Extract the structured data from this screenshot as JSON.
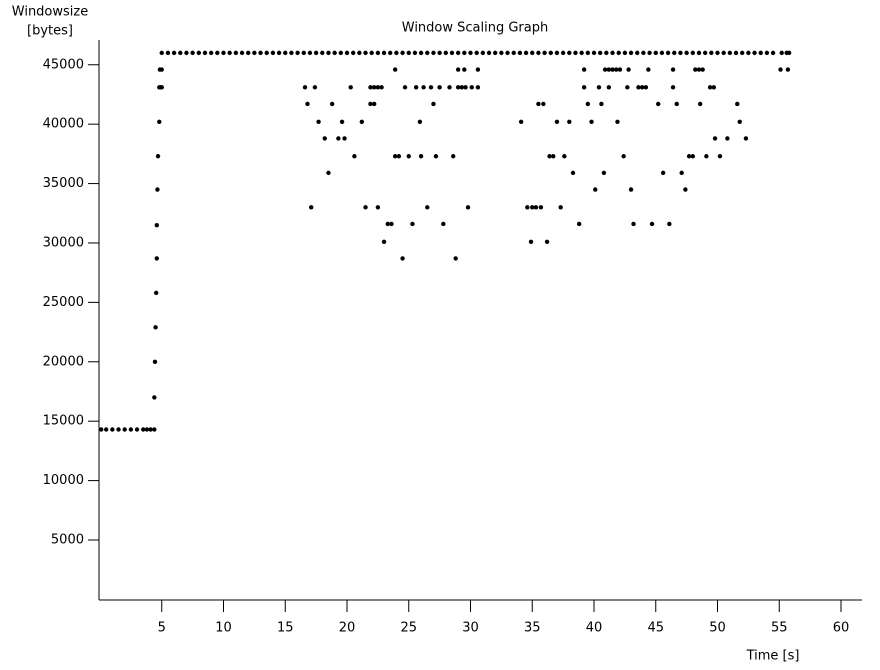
{
  "chart_data": {
    "type": "scatter",
    "title": "Window Scaling Graph",
    "y_label": "Windowsize",
    "y_unit_label": "[bytes]",
    "x_label": "Time [s]",
    "xlim": [
      0,
      61.7
    ],
    "ylim": [
      0,
      47000
    ],
    "xticks": [
      5,
      10,
      15,
      20,
      25,
      30,
      35,
      40,
      45,
      50,
      55,
      60
    ],
    "yticks": [
      5000,
      10000,
      15000,
      20000,
      25000,
      30000,
      35000,
      40000,
      45000
    ],
    "color": "#000000",
    "series": [
      {
        "color": "#000000",
        "x": [
          0.1,
          0.5,
          1,
          1.5,
          2,
          2.5,
          3,
          3.5,
          3.8,
          4.1,
          4.4,
          4.4,
          4.45,
          4.5,
          4.55,
          4.6,
          4.6,
          4.65,
          4.7,
          4.8,
          4.8,
          4.9,
          5.0,
          4.85,
          5.0,
          16.6,
          16.8,
          17.1,
          17.4,
          17.7,
          18.2,
          18.5,
          18.8,
          19.3,
          19.6,
          19.8,
          20.3,
          20.6,
          21.2,
          21.5,
          21.9,
          21.9,
          22.2,
          22.2,
          22.5,
          22.8,
          22.5,
          23,
          23.3,
          23.6,
          23.9,
          23.9,
          24.2,
          24.5,
          24.7,
          25,
          25.3,
          25.6,
          25.9,
          26,
          26.2,
          26.5,
          26.8,
          27,
          27.2,
          27.5,
          27.8,
          28.3,
          28.6,
          28.8,
          29,
          29,
          29.3,
          29.5,
          29.6,
          29.8,
          30.1,
          30.6,
          30.6,
          34.1,
          34.6,
          34.9,
          35,
          35.3,
          35.5,
          35.7,
          35.9,
          36.2,
          36.4,
          36.7,
          37,
          37.3,
          37.6,
          38,
          38.3,
          38.8,
          39.2,
          39.2,
          39.5,
          39.8,
          40.1,
          40.4,
          40.6,
          40.8,
          40.9,
          41.2,
          41.2,
          41.5,
          41.8,
          41.9,
          42.1,
          42.4,
          42.7,
          42.8,
          43,
          43.2,
          43.6,
          43.9,
          44.2,
          44.4,
          44.7,
          45.2,
          45.6,
          46.1,
          46.4,
          46.4,
          46.7,
          47.1,
          47.4,
          47.7,
          48,
          48.2,
          48.5,
          48.8,
          48.6,
          49.1,
          49.4,
          49.7,
          49.8,
          50.2,
          50.8,
          51.6,
          51.8,
          52.3,
          55.1,
          55.7,
          55.2,
          55.6,
          55.8
        ],
        "y": [
          14300,
          14300,
          14300,
          14300,
          14300,
          14300,
          14300,
          14300,
          14300,
          14300,
          14300,
          17000,
          20000,
          22900,
          25800,
          28700,
          31500,
          34500,
          37300,
          40200,
          43100,
          43100,
          43100,
          44600,
          44600,
          43100,
          41700,
          33000,
          43100,
          40200,
          38800,
          35900,
          41700,
          38800,
          40200,
          38800,
          43100,
          37300,
          40200,
          33000,
          41700,
          43100,
          41700,
          43100,
          43100,
          43100,
          33000,
          30100,
          31600,
          31600,
          37300,
          44600,
          37300,
          28700,
          43100,
          37300,
          31600,
          43100,
          40200,
          37300,
          43100,
          33000,
          43100,
          41700,
          37300,
          43100,
          31600,
          43100,
          37300,
          28700,
          43100,
          44600,
          43100,
          44600,
          43100,
          33000,
          43100,
          43100,
          44600,
          40200,
          33000,
          30100,
          33000,
          33000,
          41700,
          33000,
          41700,
          30100,
          37300,
          37300,
          40200,
          33000,
          37300,
          40200,
          35900,
          31600,
          44600,
          43100,
          41700,
          40200,
          34500,
          43100,
          41700,
          35900,
          44600,
          44600,
          43100,
          44600,
          44600,
          40200,
          44600,
          37300,
          43100,
          44600,
          34500,
          31600,
          43100,
          43100,
          43100,
          44600,
          31600,
          41700,
          35900,
          31600,
          43100,
          44600,
          41700,
          35900,
          34500,
          37300,
          37300,
          44600,
          44600,
          44600,
          41700,
          37300,
          43100,
          43100,
          38800,
          37300,
          38800,
          41700,
          40200,
          38800,
          44600,
          44600,
          46000,
          46000,
          46000
        ]
      },
      {
        "color": "#000000",
        "x": [
          5,
          5.5,
          6,
          6.5,
          7,
          7.5,
          8,
          8.5,
          9,
          9.5,
          10,
          10.5,
          11,
          11.5,
          12,
          12.5,
          13,
          13.5,
          14,
          14.5,
          15,
          15.5,
          16,
          16.5,
          17,
          17.5,
          18,
          18.5,
          19,
          19.5,
          20,
          20.5,
          21,
          21.5,
          22,
          22.5,
          23,
          23.5,
          24,
          24.5,
          25,
          25.5,
          26,
          26.5,
          27,
          27.5,
          28,
          28.5,
          29,
          29.5,
          30,
          30.5,
          31,
          31.5,
          32,
          32.5,
          33,
          33.5,
          34,
          34.5,
          35,
          35.5,
          36,
          36.5,
          37,
          37.5,
          38,
          38.5,
          39,
          39.5,
          40,
          40.5,
          41,
          41.5,
          42,
          42.5,
          43,
          43.5,
          44,
          44.5,
          45,
          45.5,
          46,
          46.5,
          47,
          47.5,
          48,
          48.5,
          49,
          49.5,
          50,
          50.5,
          51,
          51.5,
          52,
          52.5,
          53,
          53.5,
          54,
          54.5
        ],
        "y": [
          46000,
          46000,
          46000,
          46000,
          46000,
          46000,
          46000,
          46000,
          46000,
          46000,
          46000,
          46000,
          46000,
          46000,
          46000,
          46000,
          46000,
          46000,
          46000,
          46000,
          46000,
          46000,
          46000,
          46000,
          46000,
          46000,
          46000,
          46000,
          46000,
          46000,
          46000,
          46000,
          46000,
          46000,
          46000,
          46000,
          46000,
          46000,
          46000,
          46000,
          46000,
          46000,
          46000,
          46000,
          46000,
          46000,
          46000,
          46000,
          46000,
          46000,
          46000,
          46000,
          46000,
          46000,
          46000,
          46000,
          46000,
          46000,
          46000,
          46000,
          46000,
          46000,
          46000,
          46000,
          46000,
          46000,
          46000,
          46000,
          46000,
          46000,
          46000,
          46000,
          46000,
          46000,
          46000,
          46000,
          46000,
          46000,
          46000,
          46000,
          46000,
          46000,
          46000,
          46000,
          46000,
          46000,
          46000,
          46000,
          46000,
          46000,
          46000,
          46000,
          46000,
          46000,
          46000,
          46000,
          46000,
          46000,
          46000,
          46000
        ]
      }
    ]
  }
}
